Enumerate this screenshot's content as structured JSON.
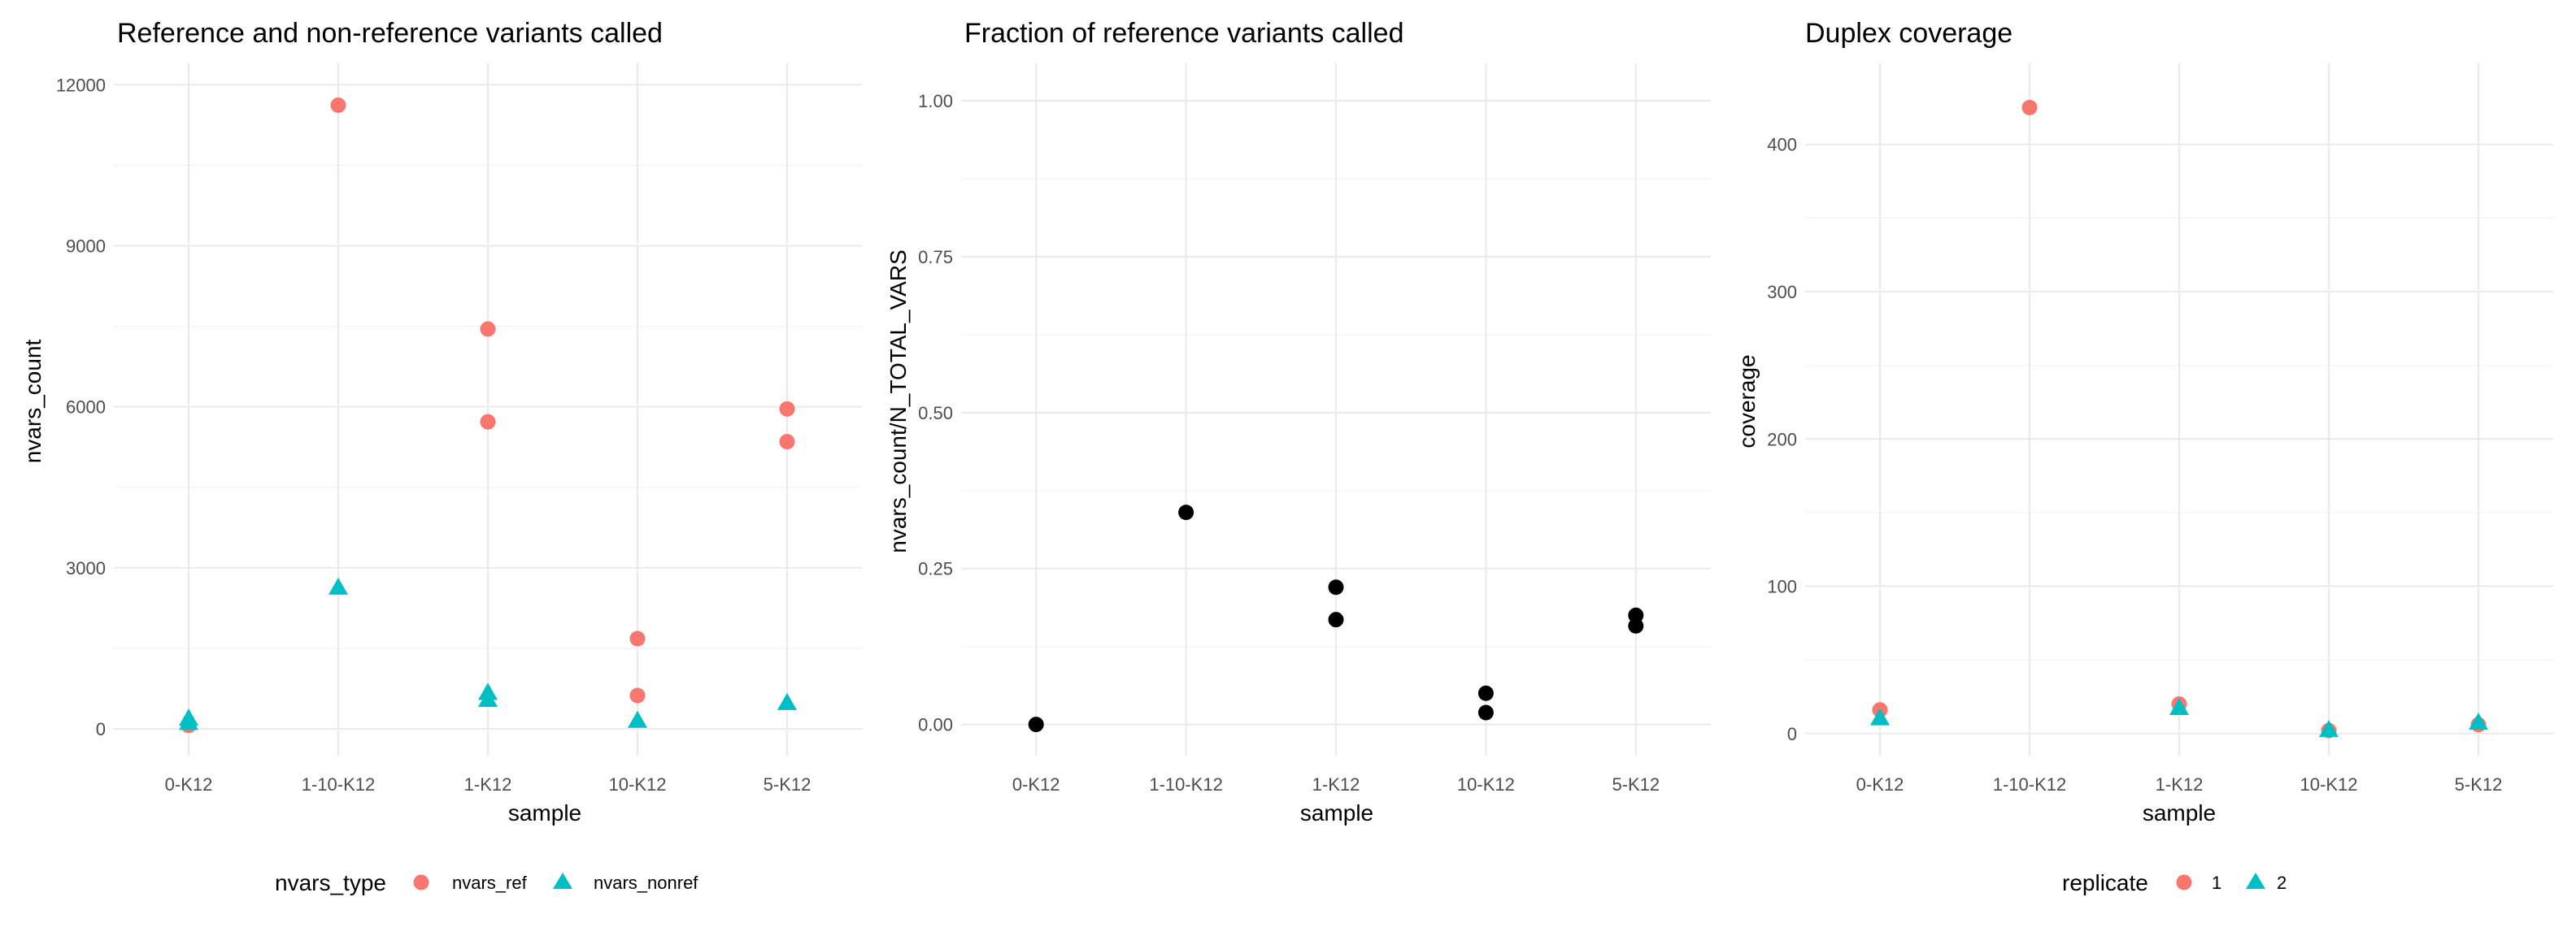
{
  "chart_data": [
    {
      "type": "scatter",
      "title": "Reference and non-reference variants called",
      "xlabel": "sample",
      "ylabel": "nvars_count",
      "categories": [
        "0-K12",
        "1-10-K12",
        "1-K12",
        "10-K12",
        "5-K12"
      ],
      "ylim": [
        -500,
        12400
      ],
      "yticks": [
        0,
        3000,
        6000,
        9000,
        12000
      ],
      "ytick_labels": [
        "0",
        "3000",
        "6000",
        "9000",
        "12000"
      ],
      "grid": true,
      "legend": {
        "title": "nvars_type",
        "position": "bottom",
        "entries": [
          {
            "label": "nvars_ref",
            "color": "#F8766D",
            "shape": "circle"
          },
          {
            "label": "nvars_nonref",
            "color": "#00BFC4",
            "shape": "triangle"
          }
        ]
      },
      "series": [
        {
          "name": "nvars_ref",
          "color": "#F8766D",
          "shape": "circle",
          "points": [
            [
              "0-K12",
              60
            ],
            [
              "1-10-K12",
              11620
            ],
            [
              "1-K12",
              7450
            ],
            [
              "1-K12",
              5720
            ],
            [
              "10-K12",
              1680
            ],
            [
              "10-K12",
              620
            ],
            [
              "5-K12",
              5960
            ],
            [
              "5-K12",
              5350
            ]
          ]
        },
        {
          "name": "nvars_nonref",
          "color": "#00BFC4",
          "shape": "triangle",
          "points": [
            [
              "0-K12",
              180
            ],
            [
              "0-K12",
              100
            ],
            [
              "1-10-K12",
              2620
            ],
            [
              "1-K12",
              660
            ],
            [
              "1-K12",
              530
            ],
            [
              "10-K12",
              140
            ],
            [
              "5-K12",
              470
            ]
          ]
        }
      ]
    },
    {
      "type": "scatter",
      "title": "Fraction of reference variants called",
      "xlabel": "sample",
      "ylabel": "nvars_count/N_TOTAL_VARS",
      "categories": [
        "0-K12",
        "1-10-K12",
        "1-K12",
        "10-K12",
        "5-K12"
      ],
      "ylim": [
        -0.05,
        1.06
      ],
      "yticks": [
        0,
        0.25,
        0.5,
        0.75,
        1
      ],
      "ytick_labels": [
        "0.00",
        "0.25",
        "0.50",
        "0.75",
        "1.00"
      ],
      "grid": true,
      "series": [
        {
          "color": "#000000",
          "shape": "circle",
          "points": [
            [
              "0-K12",
              0.0
            ],
            [
              "1-10-K12",
              0.34
            ],
            [
              "1-K12",
              0.22
            ],
            [
              "1-K12",
              0.168
            ],
            [
              "10-K12",
              0.05
            ],
            [
              "10-K12",
              0.019
            ],
            [
              "5-K12",
              0.175
            ],
            [
              "5-K12",
              0.158
            ]
          ]
        }
      ]
    },
    {
      "type": "scatter",
      "title": "Duplex coverage",
      "xlabel": "sample",
      "ylabel": "coverage",
      "categories": [
        "0-K12",
        "1-10-K12",
        "1-K12",
        "10-K12",
        "5-K12"
      ],
      "ylim": [
        -15,
        455
      ],
      "yticks": [
        0,
        100,
        200,
        300,
        400
      ],
      "ytick_labels": [
        "0",
        "100",
        "200",
        "300",
        "400"
      ],
      "grid": true,
      "legend": {
        "title": "replicate",
        "position": "bottom",
        "entries": [
          {
            "label": "1",
            "color": "#F8766D",
            "shape": "circle"
          },
          {
            "label": "2",
            "color": "#00BFC4",
            "shape": "triangle"
          }
        ]
      },
      "series": [
        {
          "name": "1",
          "color": "#F8766D",
          "shape": "circle",
          "points": [
            [
              "0-K12",
              16
            ],
            [
              "1-10-K12",
              425
            ],
            [
              "1-K12",
              20
            ],
            [
              "10-K12",
              2
            ],
            [
              "5-K12",
              6
            ]
          ]
        },
        {
          "name": "2",
          "color": "#00BFC4",
          "shape": "triangle",
          "points": [
            [
              "0-K12",
              10
            ],
            [
              "1-K12",
              17
            ],
            [
              "10-K12",
              2
            ],
            [
              "5-K12",
              7
            ]
          ]
        }
      ]
    }
  ]
}
